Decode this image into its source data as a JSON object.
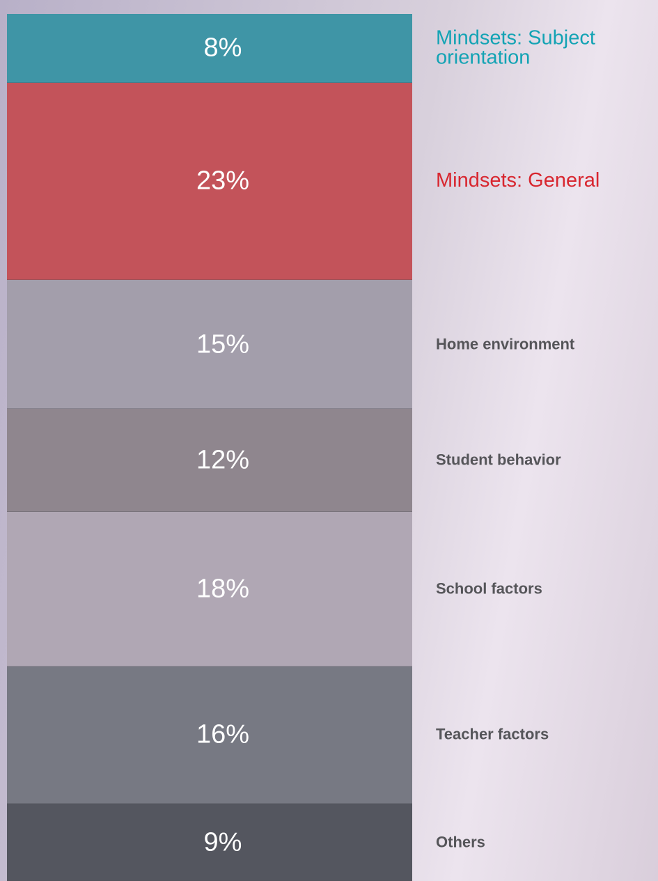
{
  "chart_data": {
    "type": "stacked-column",
    "categories": [
      "Mindsets: Subject orientation",
      "Mindsets: General",
      "Home environment",
      "Student behavior",
      "School factors",
      "Teacher factors",
      "Others"
    ],
    "values": [
      8,
      23,
      15,
      12,
      18,
      16,
      9
    ],
    "value_labels": [
      "8%",
      "23%",
      "15%",
      "12%",
      "18%",
      "16%",
      "9%"
    ],
    "colors": [
      "#3f95a6",
      "#c3535a",
      "#a39eab",
      "#8f868e",
      "#b0a7b4",
      "#777983",
      "#54565f"
    ],
    "label_colors": [
      "#13a3b4",
      "#d8262f",
      "#555559",
      "#555559",
      "#555559",
      "#555559",
      "#555559"
    ]
  }
}
